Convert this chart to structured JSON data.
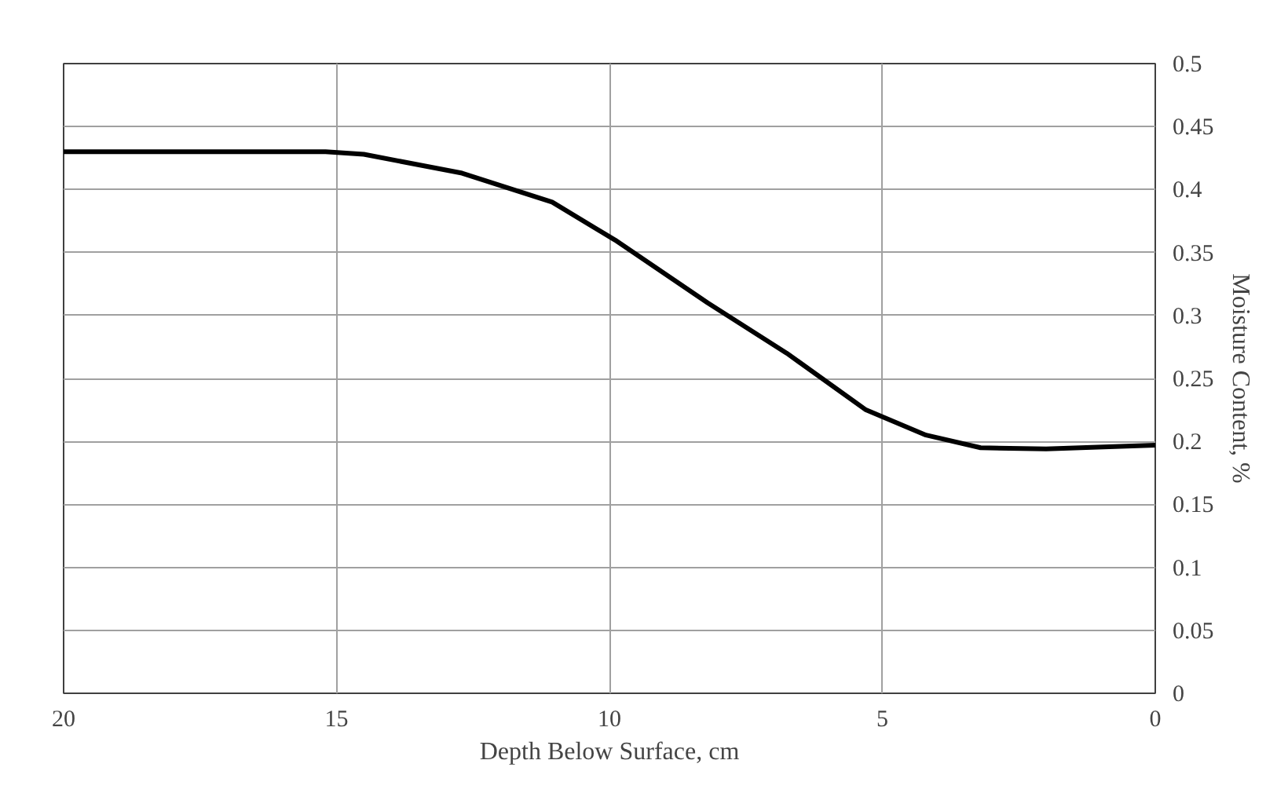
{
  "chart_data": {
    "type": "line",
    "xlabel": "Depth Below Surface, cm",
    "ylabel": "Moisture Content, %",
    "x": [
      20,
      17.5,
      15.2,
      14.5,
      12.7,
      11.05,
      9.9,
      8.2,
      6.75,
      5.3,
      4.2,
      3.2,
      2,
      0
    ],
    "series": [
      {
        "color": "#000000",
        "values": [
          0.43,
          0.43,
          0.43,
          0.428,
          0.413,
          0.39,
          0.36,
          0.31,
          0.27,
          0.225,
          0.205,
          0.195,
          0.194,
          0.197
        ]
      }
    ],
    "xlim": [
      20,
      0
    ],
    "ylim": [
      0,
      0.5
    ],
    "xticks": [
      20,
      15,
      10,
      5,
      0
    ],
    "yticks": [
      0,
      0.05,
      0.1,
      0.15,
      0.2,
      0.25,
      0.3,
      0.35,
      0.4,
      0.45,
      0.5
    ],
    "grid": true,
    "marker": "none",
    "line_style": "solid"
  }
}
